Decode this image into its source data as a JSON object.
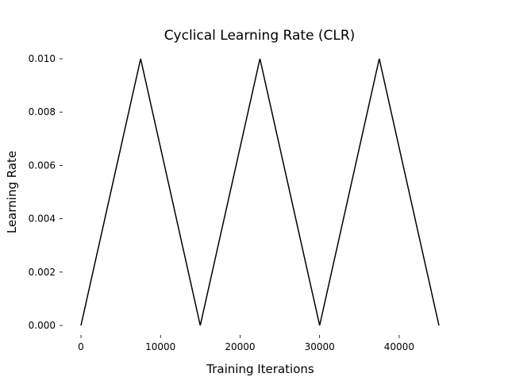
{
  "chart_data": {
    "type": "line",
    "title": "Cyclical Learning Rate (CLR)",
    "xlabel": "Training Iterations",
    "ylabel": "Learning Rate",
    "xlim": [
      0,
      45000
    ],
    "ylim": [
      0.0,
      0.01
    ],
    "x_ticks": [
      0,
      10000,
      20000,
      30000,
      40000
    ],
    "x_tick_labels": [
      "0",
      "10000",
      "20000",
      "30000",
      "40000"
    ],
    "y_ticks": [
      0.0,
      0.002,
      0.004,
      0.006,
      0.008,
      0.01
    ],
    "y_tick_labels": [
      "0.000",
      "0.002",
      "0.004",
      "0.006",
      "0.008",
      "0.010"
    ],
    "grid": false,
    "series": [
      {
        "x": [
          0,
          7500,
          15000,
          22500,
          30000,
          37500,
          45000
        ],
        "y": [
          0.0,
          0.01,
          0.0,
          0.01,
          0.0,
          0.01,
          0.0
        ]
      }
    ],
    "line_color": "#000000"
  }
}
